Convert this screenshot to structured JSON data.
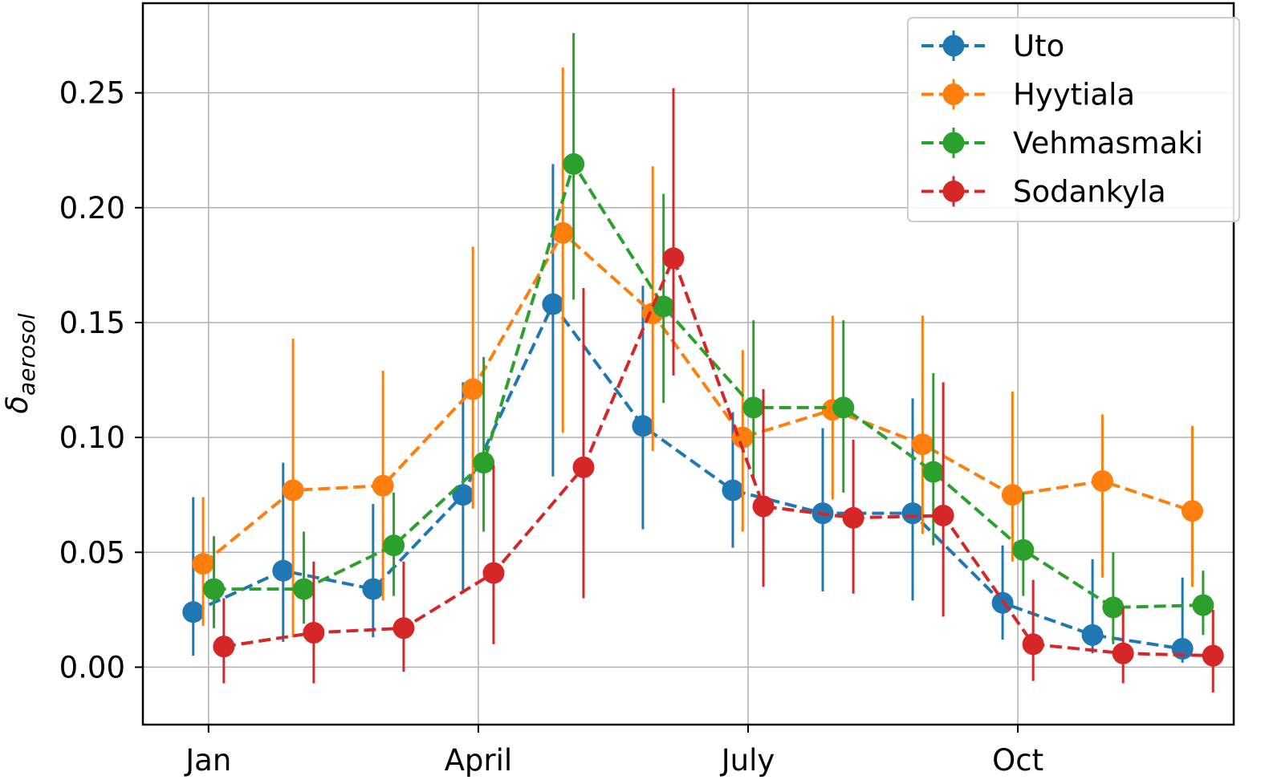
{
  "chart_data": {
    "type": "line",
    "title": "",
    "xlabel": "",
    "ylabel": "δ",
    "ylabel_subscript": "aerosol",
    "x_ticks": [
      {
        "value": 1,
        "label": "Jan"
      },
      {
        "value": 4,
        "label": "April"
      },
      {
        "value": 7,
        "label": "July"
      },
      {
        "value": 10,
        "label": "Oct"
      }
    ],
    "y_ticks": [
      {
        "value": 0.0,
        "label": "0.00"
      },
      {
        "value": 0.05,
        "label": "0.05"
      },
      {
        "value": 0.1,
        "label": "0.10"
      },
      {
        "value": 0.15,
        "label": "0.15"
      },
      {
        "value": 0.2,
        "label": "0.20"
      },
      {
        "value": 0.25,
        "label": "0.25"
      }
    ],
    "xlim": [
      0.27,
      12.4
    ],
    "ylim": [
      -0.025,
      0.289
    ],
    "grid": true,
    "legend_position": "top-right",
    "series": [
      {
        "name": "Uto",
        "color": "#1f77b4",
        "x": [
          0.83,
          1.83,
          2.83,
          3.83,
          4.83,
          5.83,
          6.83,
          7.83,
          8.83,
          9.83,
          10.83,
          11.83
        ],
        "y": [
          0.024,
          0.042,
          0.034,
          0.075,
          0.158,
          0.105,
          0.077,
          0.067,
          0.067,
          0.028,
          0.014,
          0.008
        ],
        "yerr_low": [
          0.005,
          0.011,
          0.013,
          0.032,
          0.083,
          0.06,
          0.052,
          0.033,
          0.029,
          0.012,
          0.006,
          0.002
        ],
        "yerr_high": [
          0.074,
          0.089,
          0.071,
          0.124,
          0.219,
          0.166,
          0.111,
          0.104,
          0.117,
          0.053,
          0.047,
          0.039
        ]
      },
      {
        "name": "Hyytiala",
        "color": "#ff7f0e",
        "x": [
          0.94,
          1.94,
          2.94,
          3.94,
          4.94,
          5.94,
          6.94,
          7.94,
          8.94,
          9.94,
          10.94,
          11.94
        ],
        "y": [
          0.045,
          0.077,
          0.079,
          0.121,
          0.189,
          0.154,
          0.1,
          0.112,
          0.097,
          0.075,
          0.081,
          0.068
        ],
        "yerr_low": [
          0.018,
          0.013,
          0.029,
          0.069,
          0.102,
          0.094,
          0.059,
          0.073,
          0.058,
          0.046,
          0.039,
          0.035
        ],
        "yerr_high": [
          0.074,
          0.143,
          0.129,
          0.183,
          0.261,
          0.218,
          0.138,
          0.153,
          0.153,
          0.12,
          0.11,
          0.105
        ]
      },
      {
        "name": "Vehmasmaki",
        "color": "#2ca02c",
        "x": [
          1.06,
          2.06,
          3.06,
          4.06,
          5.06,
          6.06,
          7.06,
          8.06,
          9.06,
          10.06,
          11.06,
          12.06
        ],
        "y": [
          0.034,
          0.034,
          0.053,
          0.089,
          0.219,
          0.157,
          0.113,
          0.113,
          0.085,
          0.051,
          0.026,
          0.027
        ],
        "yerr_low": [
          0.017,
          0.019,
          0.031,
          0.059,
          0.16,
          0.115,
          0.082,
          0.076,
          0.053,
          0.031,
          0.01,
          0.014
        ],
        "yerr_high": [
          0.057,
          0.059,
          0.076,
          0.135,
          0.276,
          0.206,
          0.151,
          0.151,
          0.128,
          0.076,
          0.05,
          0.042
        ]
      },
      {
        "name": "Sodankyla",
        "color": "#d62728",
        "x": [
          1.17,
          2.17,
          3.17,
          4.17,
          5.17,
          6.17,
          7.17,
          8.17,
          9.17,
          10.17,
          11.17,
          12.17
        ],
        "y": [
          0.009,
          0.015,
          0.017,
          0.041,
          0.087,
          0.178,
          0.07,
          0.065,
          0.066,
          0.01,
          0.006,
          0.005
        ],
        "yerr_low": [
          -0.007,
          -0.007,
          -0.002,
          0.01,
          0.03,
          0.127,
          0.035,
          0.032,
          0.022,
          -0.006,
          -0.007,
          -0.011
        ],
        "yerr_high": [
          0.03,
          0.046,
          0.046,
          0.088,
          0.165,
          0.252,
          0.121,
          0.099,
          0.124,
          0.038,
          0.026,
          0.025
        ]
      }
    ]
  }
}
